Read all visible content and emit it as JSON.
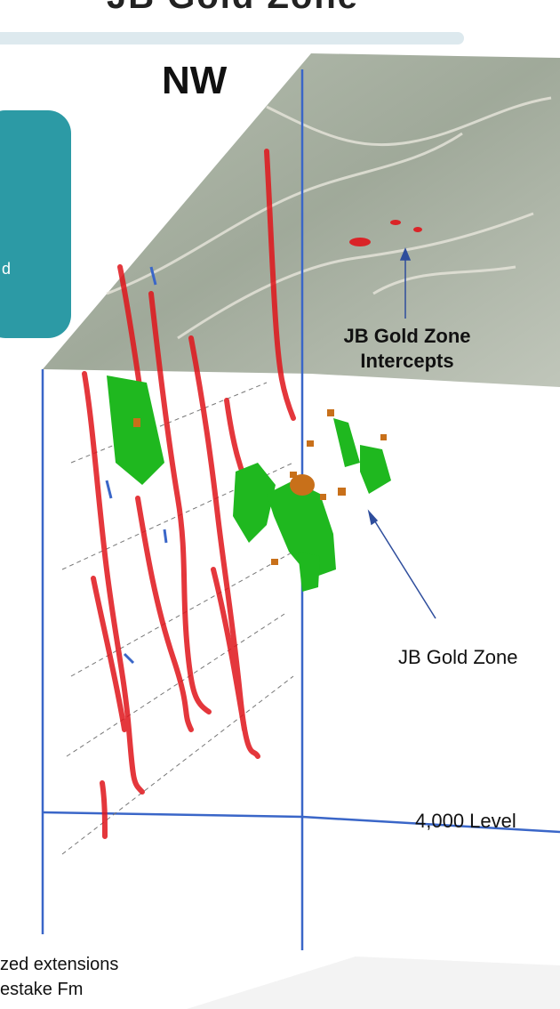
{
  "header": {
    "title_fragment": "JB Gold Zone"
  },
  "side_panel": {
    "text_fragment": "d"
  },
  "diagram": {
    "direction_label": "NW",
    "callouts": {
      "intercepts": [
        "JB Gold Zone",
        "Intercepts"
      ],
      "gold_zone": "JB Gold Zone",
      "level": "4,000 Level"
    },
    "caption": [
      "zed extensions",
      "estake Fm"
    ],
    "colors": {
      "panel": "#2c9aa5",
      "grid_lines": "#3a66c8",
      "veins": "#e0151b",
      "gold_zone": "#1fb81f",
      "intercepts_orange": "#c8701a",
      "arrow": "#2e4d9c"
    }
  }
}
